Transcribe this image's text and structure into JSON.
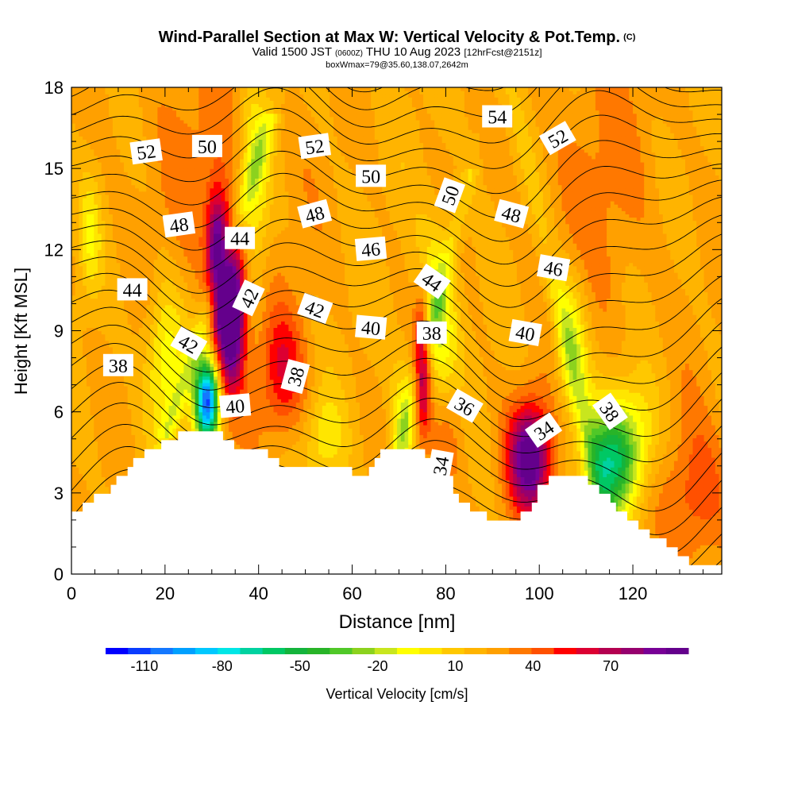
{
  "header": {
    "title": "Wind-Parallel Section at Max W: Vertical Velocity & Pot.Temp.",
    "copyright": "(C)",
    "subtitle_a": "Valid 1500 JST",
    "subtitle_b": "(0600Z)",
    "subtitle_c": "THU 10 Aug 2023",
    "subtitle_d": "[12hrFcst@2151z]",
    "subsub": "boxWmax=79@35.60,138.07,2642m"
  },
  "chart_data": {
    "type": "heatmap",
    "title": "Wind-Parallel Section at Max W: Vertical Velocity & Pot.Temp.",
    "xlabel": "Distance [nm]",
    "ylabel": "Height [Kft MSL]",
    "xlim": [
      0,
      139
    ],
    "ylim": [
      0,
      18
    ],
    "xticks": [
      0,
      20,
      40,
      60,
      80,
      100,
      120
    ],
    "yticks": [
      0,
      3,
      6,
      9,
      12,
      15,
      18
    ],
    "colorbar": {
      "label": "Vertical Velocity [cm/s]",
      "ticks": [
        -110,
        -80,
        -50,
        -20,
        10,
        40,
        70
      ],
      "min": -125,
      "max": 100,
      "step": 7.5,
      "colors": [
        "#0000ff",
        "#0a3cff",
        "#1478ff",
        "#00a0ff",
        "#00c8ff",
        "#00e6e6",
        "#00d2a0",
        "#00c864",
        "#14b43c",
        "#28b428",
        "#50c828",
        "#8cd21e",
        "#c8e61e",
        "#ffff00",
        "#ffe600",
        "#ffc800",
        "#ffb400",
        "#ffa000",
        "#ff7800",
        "#ff5000",
        "#ff0000",
        "#dc0032",
        "#b40050",
        "#96006e",
        "#780096",
        "#64008c"
      ]
    },
    "terrain": [
      {
        "x": 0,
        "z": 2.3
      },
      {
        "x": 3,
        "z": 2.6
      },
      {
        "x": 6.5,
        "z": 3.0
      },
      {
        "x": 10,
        "z": 3.6
      },
      {
        "x": 13.5,
        "z": 4.3
      },
      {
        "x": 17,
        "z": 4.6
      },
      {
        "x": 20,
        "z": 4.9
      },
      {
        "x": 23,
        "z": 5.3
      },
      {
        "x": 27,
        "z": 5.3
      },
      {
        "x": 31,
        "z": 5.3
      },
      {
        "x": 33,
        "z": 4.9
      },
      {
        "x": 36,
        "z": 4.6
      },
      {
        "x": 40,
        "z": 4.6
      },
      {
        "x": 45,
        "z": 3.9
      },
      {
        "x": 50,
        "z": 3.9
      },
      {
        "x": 55,
        "z": 3.9
      },
      {
        "x": 58,
        "z": 3.9
      },
      {
        "x": 61,
        "z": 3.6
      },
      {
        "x": 64,
        "z": 3.9
      },
      {
        "x": 66,
        "z": 4.6
      },
      {
        "x": 70,
        "z": 4.6
      },
      {
        "x": 74,
        "z": 4.6
      },
      {
        "x": 77,
        "z": 4.3
      },
      {
        "x": 80,
        "z": 3.9
      },
      {
        "x": 81,
        "z": 3.0
      },
      {
        "x": 83,
        "z": 2.6
      },
      {
        "x": 87,
        "z": 2.3
      },
      {
        "x": 90,
        "z": 2.0
      },
      {
        "x": 94,
        "z": 2.0
      },
      {
        "x": 97,
        "z": 2.3
      },
      {
        "x": 100,
        "z": 3.3
      },
      {
        "x": 103,
        "z": 3.6
      },
      {
        "x": 107,
        "z": 3.6
      },
      {
        "x": 112,
        "z": 3.3
      },
      {
        "x": 115,
        "z": 2.6
      },
      {
        "x": 119,
        "z": 2.0
      },
      {
        "x": 122,
        "z": 1.6
      },
      {
        "x": 125,
        "z": 1.3
      },
      {
        "x": 128,
        "z": 1.0
      },
      {
        "x": 130,
        "z": 0.7
      },
      {
        "x": 132,
        "z": 0.4
      },
      {
        "x": 135,
        "z": 0.3
      },
      {
        "x": 139,
        "z": 0.3
      }
    ],
    "updrafts": [
      {
        "x": 34,
        "z": 9.8,
        "sx": 2.2,
        "sz": 2.0,
        "w": 90
      },
      {
        "x": 31,
        "z": 12.0,
        "sx": 1.5,
        "sz": 1.6,
        "w": 50
      },
      {
        "x": 75,
        "z": 7.8,
        "sx": 1.3,
        "sz": 1.8,
        "w": 60
      },
      {
        "x": 98,
        "z": 4.3,
        "sx": 3.2,
        "sz": 1.4,
        "w": 70
      },
      {
        "x": 45,
        "z": 7.5,
        "sx": 3.5,
        "sz": 1.6,
        "w": 28
      },
      {
        "x": 134,
        "z": 2.8,
        "sx": 5.0,
        "sz": 2.0,
        "w": 22
      },
      {
        "x": 30,
        "z": 15.0,
        "sx": 12.0,
        "sz": 4.0,
        "w": 10
      },
      {
        "x": 112,
        "z": 14.5,
        "sx": 10.0,
        "sz": 4.0,
        "w": 10
      },
      {
        "x": 80,
        "z": 5.0,
        "sx": 3.0,
        "sz": 1.4,
        "w": 14
      }
    ],
    "downdrafts": [
      {
        "x": 29,
        "z": 6.4,
        "sx": 1.8,
        "sz": 1.1,
        "w": -110
      },
      {
        "x": 115,
        "z": 4.0,
        "sx": 3.5,
        "sz": 1.4,
        "w": -55
      },
      {
        "x": 78,
        "z": 9.5,
        "sx": 3.0,
        "sz": 2.2,
        "w": -35
      },
      {
        "x": 107,
        "z": 8.5,
        "sx": 2.5,
        "sz": 2.0,
        "w": -25
      },
      {
        "x": 20,
        "z": 8.0,
        "sx": 3.0,
        "sz": 2.0,
        "w": -30
      },
      {
        "x": 39,
        "z": 14.5,
        "sx": 2.5,
        "sz": 2.5,
        "w": -30
      },
      {
        "x": 71,
        "z": 5.5,
        "sx": 2.0,
        "sz": 1.5,
        "w": -25
      },
      {
        "x": 54,
        "z": 5.0,
        "sx": 3.0,
        "sz": 1.2,
        "w": -18
      },
      {
        "x": 4,
        "z": 12.5,
        "sx": 1.6,
        "sz": 1.5,
        "w": -20
      },
      {
        "x": 120,
        "z": 5.0,
        "sx": 4.0,
        "sz": 1.5,
        "w": -28
      }
    ],
    "contour_labels": [
      {
        "text": "52",
        "x": 16,
        "z": 15.6,
        "rot": -8
      },
      {
        "text": "50",
        "x": 29,
        "z": 15.8,
        "rot": 0
      },
      {
        "text": "52",
        "x": 52,
        "z": 15.8,
        "rot": -8
      },
      {
        "text": "54",
        "x": 91,
        "z": 16.9,
        "rot": 0
      },
      {
        "text": "52",
        "x": 104,
        "z": 16.1,
        "rot": -30
      },
      {
        "text": "50",
        "x": 64,
        "z": 14.7,
        "rot": 0
      },
      {
        "text": "50",
        "x": 81,
        "z": 14.0,
        "rot": -70
      },
      {
        "text": "48",
        "x": 23,
        "z": 12.9,
        "rot": -8
      },
      {
        "text": "44",
        "x": 36,
        "z": 12.4,
        "rot": 0
      },
      {
        "text": "48",
        "x": 52,
        "z": 13.3,
        "rot": -15
      },
      {
        "text": "48",
        "x": 94,
        "z": 13.3,
        "rot": 15
      },
      {
        "text": "46",
        "x": 64,
        "z": 12.0,
        "rot": -5
      },
      {
        "text": "46",
        "x": 103,
        "z": 11.3,
        "rot": 10
      },
      {
        "text": "44",
        "x": 13,
        "z": 10.5,
        "rot": 0
      },
      {
        "text": "44",
        "x": 77,
        "z": 10.8,
        "rot": 35
      },
      {
        "text": "42",
        "x": 38,
        "z": 10.2,
        "rot": -65
      },
      {
        "text": "42",
        "x": 52,
        "z": 9.8,
        "rot": 20
      },
      {
        "text": "42",
        "x": 25,
        "z": 8.5,
        "rot": 30
      },
      {
        "text": "40",
        "x": 64,
        "z": 9.1,
        "rot": 5
      },
      {
        "text": "38",
        "x": 77,
        "z": 8.9,
        "rot": 0
      },
      {
        "text": "40",
        "x": 97,
        "z": 8.9,
        "rot": 10
      },
      {
        "text": "38",
        "x": 10,
        "z": 7.7,
        "rot": 0
      },
      {
        "text": "38",
        "x": 48,
        "z": 7.3,
        "rot": -75
      },
      {
        "text": "40",
        "x": 35,
        "z": 6.2,
        "rot": -5
      },
      {
        "text": "36",
        "x": 84,
        "z": 6.2,
        "rot": 30
      },
      {
        "text": "38",
        "x": 115,
        "z": 6.0,
        "rot": 55
      },
      {
        "text": "34",
        "x": 101,
        "z": 5.3,
        "rot": -35
      },
      {
        "text": "34",
        "x": 79,
        "z": 4.0,
        "rot": -80
      }
    ]
  }
}
